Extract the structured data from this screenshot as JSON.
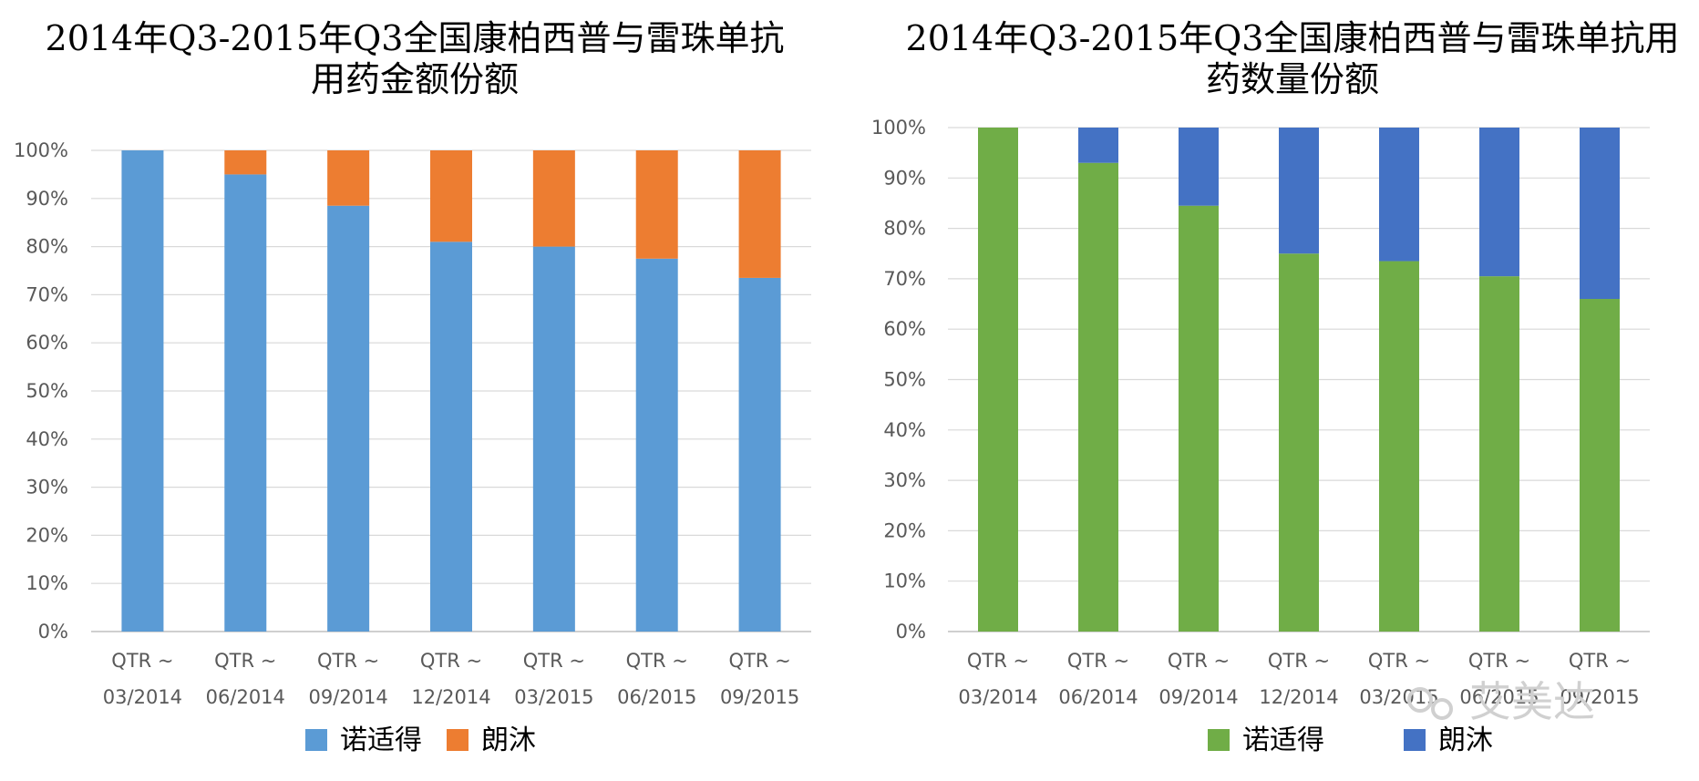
{
  "chart_data": [
    {
      "type": "bar",
      "stacked": true,
      "percent": true,
      "title_lines": [
        "2014年Q3-2015年Q3全国康柏西普与雷珠单抗",
        "用药金额份额"
      ],
      "categories": [
        [
          "QTR ~",
          "03/2014"
        ],
        [
          "QTR ~",
          "06/2014"
        ],
        [
          "QTR ~",
          "09/2014"
        ],
        [
          "QTR ~",
          "12/2014"
        ],
        [
          "QTR ~",
          "03/2015"
        ],
        [
          "QTR ~",
          "06/2015"
        ],
        [
          "QTR ~",
          "09/2015"
        ]
      ],
      "series": [
        {
          "name": "诺适得",
          "color": "#5b9bd5",
          "values": [
            100,
            95,
            88.5,
            81,
            80,
            77.5,
            73.5
          ]
        },
        {
          "name": "朗沐",
          "color": "#ed7d31",
          "values": [
            0,
            5,
            11.5,
            19,
            20,
            22.5,
            26.5
          ]
        }
      ],
      "ylim": [
        0,
        100
      ],
      "yticks": [
        "0%",
        "10%",
        "20%",
        "30%",
        "40%",
        "50%",
        "60%",
        "70%",
        "80%",
        "90%",
        "100%"
      ],
      "grid": true,
      "legend_position": "bottom"
    },
    {
      "type": "bar",
      "stacked": true,
      "percent": true,
      "title_lines": [
        "2014年Q3-2015年Q3全国康柏西普与雷珠单抗用",
        "药数量份额"
      ],
      "categories": [
        [
          "QTR ~",
          "03/2014"
        ],
        [
          "QTR ~",
          "06/2014"
        ],
        [
          "QTR ~",
          "09/2014"
        ],
        [
          "QTR ~",
          "12/2014"
        ],
        [
          "QTR ~",
          "03/2015"
        ],
        [
          "QTR ~",
          "06/2015"
        ],
        [
          "QTR ~",
          "09/2015"
        ]
      ],
      "series": [
        {
          "name": "诺适得",
          "color": "#70ad47",
          "values": [
            100,
            93,
            84.5,
            75,
            73.5,
            70.5,
            66
          ]
        },
        {
          "name": "朗沐",
          "color": "#4472c4",
          "values": [
            0,
            7,
            15.5,
            25,
            26.5,
            29.5,
            34
          ]
        }
      ],
      "ylim": [
        0,
        100
      ],
      "yticks": [
        "0%",
        "10%",
        "20%",
        "30%",
        "40%",
        "50%",
        "60%",
        "70%",
        "80%",
        "90%",
        "100%"
      ],
      "grid": true,
      "legend_position": "bottom"
    }
  ],
  "watermark": "艾美达"
}
